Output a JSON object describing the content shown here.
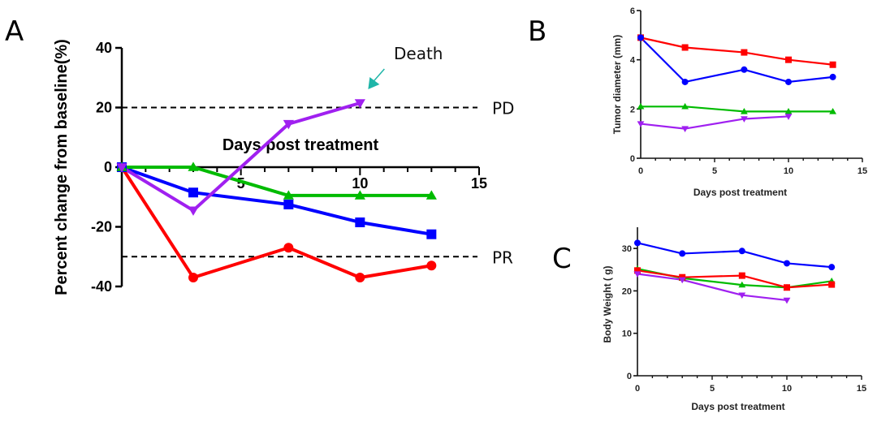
{
  "figure": {
    "panel_labels": [
      "A",
      "B",
      "C"
    ]
  },
  "chart_data": [
    {
      "panel": "A",
      "type": "line",
      "title": "",
      "xlabel": "Days post treatment",
      "ylabel": "Percent change from baseline(%)",
      "xlim": [
        0,
        15
      ],
      "ylim": [
        -40,
        40
      ],
      "xticks": [
        5,
        10,
        15
      ],
      "yticks": [
        40,
        20,
        0,
        -20,
        -40
      ],
      "grid": false,
      "reference_lines": [
        {
          "y": 20,
          "label": "PD",
          "style": "dashed"
        },
        {
          "y": -30,
          "label": "PR",
          "style": "dashed"
        }
      ],
      "annotations": [
        {
          "text": "Death",
          "points_to": {
            "x": 10,
            "y": 21.5
          },
          "arrow_color": "#1fb5a8"
        }
      ],
      "series": [
        {
          "name": "red",
          "color": "#ff0000",
          "marker": "circle",
          "x": [
            0,
            3,
            7,
            10,
            13
          ],
          "values": [
            0,
            -37,
            -27,
            -37,
            -33
          ]
        },
        {
          "name": "blue",
          "color": "#0000ff",
          "marker": "square",
          "x": [
            0,
            3,
            7,
            10,
            13
          ],
          "values": [
            0,
            -8.5,
            -12.5,
            -18.5,
            -22.5
          ]
        },
        {
          "name": "green",
          "color": "#00bb00",
          "marker": "triangle-up",
          "x": [
            0,
            3,
            7,
            10,
            13
          ],
          "values": [
            0,
            0,
            -9.5,
            -9.5,
            -9.5
          ]
        },
        {
          "name": "purple",
          "color": "#a020f0",
          "marker": "triangle-down",
          "x": [
            0,
            3,
            7,
            10
          ],
          "values": [
            0,
            -14.5,
            14.5,
            21.5
          ]
        }
      ]
    },
    {
      "panel": "B",
      "type": "line",
      "title": "",
      "xlabel": "Days post treatment",
      "ylabel": "Tumor diameter (mm)",
      "xlim": [
        0,
        15
      ],
      "ylim": [
        0,
        6
      ],
      "xticks": [
        0,
        5,
        10,
        15
      ],
      "yticks": [
        0,
        2,
        4,
        6
      ],
      "grid": false,
      "series": [
        {
          "name": "red",
          "color": "#ff0000",
          "marker": "square",
          "x": [
            0,
            3,
            7,
            10,
            13
          ],
          "values": [
            4.9,
            4.5,
            4.3,
            4.0,
            3.8
          ]
        },
        {
          "name": "blue",
          "color": "#0000ff",
          "marker": "circle",
          "x": [
            0,
            3,
            7,
            10,
            13
          ],
          "values": [
            4.9,
            3.1,
            3.6,
            3.1,
            3.3
          ]
        },
        {
          "name": "green",
          "color": "#00bb00",
          "marker": "triangle-up",
          "x": [
            0,
            3,
            7,
            10,
            13
          ],
          "values": [
            2.1,
            2.1,
            1.9,
            1.9,
            1.9
          ]
        },
        {
          "name": "purple",
          "color": "#a020f0",
          "marker": "triangle-down",
          "x": [
            0,
            3,
            7,
            10
          ],
          "values": [
            1.4,
            1.2,
            1.6,
            1.7
          ]
        }
      ]
    },
    {
      "panel": "C",
      "type": "line",
      "title": "",
      "xlabel": "Days post treatment",
      "ylabel": "Body Weight ( g)",
      "xlim": [
        0,
        15
      ],
      "ylim": [
        0,
        35
      ],
      "xticks": [
        0,
        5,
        10,
        15
      ],
      "yticks": [
        0,
        10,
        20,
        30
      ],
      "grid": false,
      "series": [
        {
          "name": "blue",
          "color": "#0000ff",
          "marker": "circle",
          "x": [
            0,
            3,
            7,
            10,
            13
          ],
          "values": [
            31.3,
            28.8,
            29.4,
            26.5,
            25.6
          ]
        },
        {
          "name": "green",
          "color": "#00bb00",
          "marker": "triangle-up",
          "x": [
            0,
            3,
            7,
            10,
            13
          ],
          "values": [
            25.2,
            23.0,
            21.4,
            20.8,
            22.3
          ]
        },
        {
          "name": "red",
          "color": "#ff0000",
          "marker": "square",
          "x": [
            0,
            3,
            7,
            10,
            13
          ],
          "values": [
            24.8,
            23.2,
            23.6,
            20.8,
            21.5
          ]
        },
        {
          "name": "purple",
          "color": "#a020f0",
          "marker": "triangle-down",
          "x": [
            0,
            3,
            7,
            10
          ],
          "values": [
            24.0,
            22.6,
            19.0,
            17.8
          ]
        }
      ]
    }
  ]
}
